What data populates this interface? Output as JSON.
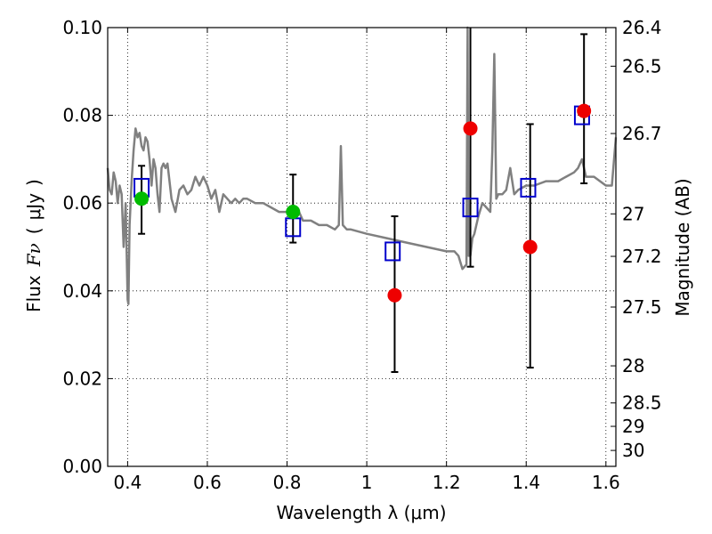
{
  "chart_data": {
    "type": "scatter",
    "xlabel": "Wavelength  λ (μm)",
    "ylabel_parts": {
      "flux": "Flux",
      "symbol": "Fν",
      "open": "(",
      "unit": "μJy",
      "close": ")"
    },
    "y2label": "Magnitude (AB)",
    "xlim": [
      0.35,
      1.625
    ],
    "ylim": [
      0.0,
      0.1
    ],
    "grid": true,
    "x_ticks": [
      0.4,
      0.6,
      0.8,
      1.0,
      1.2,
      1.4,
      1.6
    ],
    "x_tick_labels": [
      "0.4",
      "0.6",
      "0.8",
      "1",
      "1.2",
      "1.4",
      "1.6"
    ],
    "y_ticks": [
      0.0,
      0.02,
      0.04,
      0.06,
      0.08,
      0.1
    ],
    "y_tick_labels": [
      "0.00",
      "0.02",
      "0.04",
      "0.06",
      "0.08",
      "0.10"
    ],
    "mag_ticks": [
      26.4,
      26.5,
      26.7,
      27,
      27.2,
      27.5,
      28,
      28.5,
      29,
      30
    ],
    "mag_tick_labels": [
      "26.4",
      "26.5",
      "26.7",
      "27",
      "27.2",
      "27.5",
      "28",
      "28.5",
      "29",
      "30"
    ],
    "colors": {
      "model": "#808080",
      "green": "#00bb00",
      "red": "#ee0000",
      "box": "#0000cc",
      "errbar": "#000000"
    },
    "series": [
      {
        "name": "model SED",
        "kind": "line",
        "x": [
          0.35,
          0.355,
          0.36,
          0.365,
          0.37,
          0.375,
          0.38,
          0.385,
          0.39,
          0.395,
          0.4,
          0.402,
          0.405,
          0.41,
          0.415,
          0.42,
          0.425,
          0.43,
          0.435,
          0.44,
          0.445,
          0.45,
          0.455,
          0.46,
          0.465,
          0.47,
          0.475,
          0.48,
          0.485,
          0.49,
          0.495,
          0.5,
          0.51,
          0.52,
          0.53,
          0.54,
          0.55,
          0.56,
          0.57,
          0.58,
          0.59,
          0.6,
          0.61,
          0.62,
          0.63,
          0.64,
          0.65,
          0.66,
          0.67,
          0.68,
          0.69,
          0.7,
          0.72,
          0.74,
          0.76,
          0.78,
          0.8,
          0.82,
          0.83,
          0.84,
          0.86,
          0.88,
          0.9,
          0.92,
          0.93,
          0.935,
          0.94,
          0.95,
          0.96,
          1.0,
          1.05,
          1.1,
          1.15,
          1.2,
          1.22,
          1.23,
          1.24,
          1.25,
          1.253,
          1.255,
          1.26,
          1.265,
          1.27,
          1.28,
          1.29,
          1.3,
          1.31,
          1.315,
          1.32,
          1.325,
          1.33,
          1.34,
          1.35,
          1.36,
          1.37,
          1.38,
          1.4,
          1.42,
          1.45,
          1.48,
          1.5,
          1.52,
          1.53,
          1.54,
          1.55,
          1.57,
          1.6,
          1.615,
          1.625
        ],
        "y": [
          0.068,
          0.063,
          0.062,
          0.067,
          0.065,
          0.06,
          0.064,
          0.062,
          0.05,
          0.06,
          0.038,
          0.037,
          0.055,
          0.065,
          0.072,
          0.077,
          0.075,
          0.076,
          0.073,
          0.072,
          0.075,
          0.074,
          0.07,
          0.064,
          0.07,
          0.068,
          0.062,
          0.058,
          0.068,
          0.069,
          0.068,
          0.069,
          0.061,
          0.058,
          0.063,
          0.064,
          0.062,
          0.063,
          0.066,
          0.064,
          0.066,
          0.064,
          0.061,
          0.063,
          0.058,
          0.062,
          0.061,
          0.06,
          0.061,
          0.06,
          0.061,
          0.061,
          0.06,
          0.06,
          0.059,
          0.058,
          0.058,
          0.058,
          0.058,
          0.056,
          0.056,
          0.055,
          0.055,
          0.054,
          0.055,
          0.073,
          0.055,
          0.054,
          0.054,
          0.053,
          0.052,
          0.051,
          0.05,
          0.049,
          0.049,
          0.048,
          0.045,
          0.046,
          0.1,
          0.048,
          0.048,
          0.052,
          0.053,
          0.057,
          0.06,
          0.059,
          0.058,
          0.072,
          0.094,
          0.061,
          0.062,
          0.062,
          0.063,
          0.068,
          0.062,
          0.063,
          0.064,
          0.064,
          0.065,
          0.065,
          0.066,
          0.067,
          0.068,
          0.07,
          0.066,
          0.066,
          0.064,
          0.064,
          0.075
        ]
      },
      {
        "name": "green points",
        "kind": "points",
        "x": [
          0.435,
          0.815
        ],
        "y": [
          0.061,
          0.058
        ]
      },
      {
        "name": "red points",
        "kind": "points",
        "x": [
          1.07,
          1.26,
          1.41,
          1.545
        ],
        "y": [
          0.039,
          0.077,
          0.05,
          0.081
        ]
      },
      {
        "name": "synthetic photometry",
        "kind": "boxes",
        "x": [
          0.435,
          0.815,
          1.065,
          1.26,
          1.405,
          1.54
        ],
        "y": [
          0.0635,
          0.0545,
          0.049,
          0.059,
          0.0635,
          0.08
        ]
      },
      {
        "name": "error bars",
        "kind": "errorbars",
        "x": [
          0.435,
          0.815,
          1.07,
          1.26,
          1.41,
          1.545
        ],
        "ylow": [
          0.053,
          0.051,
          0.0215,
          0.0455,
          0.0225,
          0.0645
        ],
        "yhigh": [
          0.0685,
          0.0665,
          0.057,
          0.1,
          0.078,
          0.0985
        ]
      }
    ]
  }
}
